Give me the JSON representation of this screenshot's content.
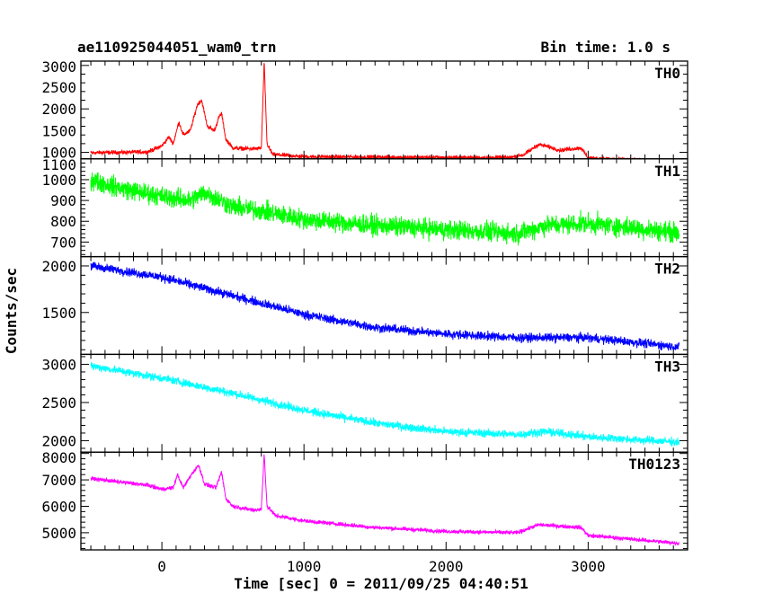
{
  "header": {
    "title": "ae110925044051_wam0_trn",
    "bin_time": "Bin time: 1.0 s"
  },
  "chart_data": {
    "type": "line",
    "xlabel": "Time [sec] 0 = 2011/09/25 04:40:51",
    "ylabel": "Counts/sec",
    "xlim": [
      -570,
      3700
    ],
    "x_ticks": [
      0,
      1000,
      2000,
      3000
    ],
    "x_data_range": [
      -500,
      3640
    ],
    "series": [
      {
        "name": "TH0",
        "color": "#ff0000",
        "ylim": [
          850,
          3100
        ],
        "y_ticks": [
          1000,
          1500,
          2000,
          2500,
          3000
        ],
        "noise": 40,
        "profile": [
          [
            -500,
            990
          ],
          [
            -100,
            1010
          ],
          [
            0,
            1150
          ],
          [
            50,
            1350
          ],
          [
            80,
            1200
          ],
          [
            120,
            1700
          ],
          [
            150,
            1400
          ],
          [
            200,
            1500
          ],
          [
            250,
            2100
          ],
          [
            280,
            2200
          ],
          [
            320,
            1600
          ],
          [
            370,
            1500
          ],
          [
            400,
            1800
          ],
          [
            420,
            1900
          ],
          [
            450,
            1300
          ],
          [
            500,
            1100
          ],
          [
            650,
            1080
          ],
          [
            700,
            1100
          ],
          [
            720,
            3080
          ],
          [
            740,
            1200
          ],
          [
            780,
            950
          ],
          [
            1000,
            900
          ],
          [
            2000,
            880
          ],
          [
            2450,
            880
          ],
          [
            2550,
            950
          ],
          [
            2650,
            1180
          ],
          [
            2700,
            1150
          ],
          [
            2800,
            1050
          ],
          [
            2950,
            1100
          ],
          [
            3000,
            870
          ],
          [
            3640,
            780
          ]
        ],
        "spikes": []
      },
      {
        "name": "TH1",
        "color": "#00ff00",
        "ylim": [
          630,
          1100
        ],
        "y_ticks": [
          700,
          800,
          900,
          1000,
          1100
        ],
        "noise": 40,
        "profile": [
          [
            -500,
            1000
          ],
          [
            -300,
            960
          ],
          [
            0,
            920
          ],
          [
            200,
            900
          ],
          [
            300,
            940
          ],
          [
            500,
            870
          ],
          [
            700,
            850
          ],
          [
            1000,
            810
          ],
          [
            1500,
            780
          ],
          [
            2000,
            760
          ],
          [
            2500,
            740
          ],
          [
            2700,
            780
          ],
          [
            3000,
            790
          ],
          [
            3640,
            745
          ]
        ],
        "spikes": []
      },
      {
        "name": "TH2",
        "color": "#0000ff",
        "ylim": [
          1050,
          2100
        ],
        "y_ticks": [
          1500,
          2000
        ],
        "noise": 40,
        "profile": [
          [
            -500,
            2000
          ],
          [
            0,
            1880
          ],
          [
            500,
            1680
          ],
          [
            1000,
            1480
          ],
          [
            1500,
            1340
          ],
          [
            2000,
            1270
          ],
          [
            2500,
            1230
          ],
          [
            3000,
            1230
          ],
          [
            3640,
            1130
          ]
        ],
        "spikes": []
      },
      {
        "name": "TH3",
        "color": "#00ffff",
        "ylim": [
          1850,
          3130
        ],
        "y_ticks": [
          2000,
          2500,
          3000
        ],
        "noise": 45,
        "profile": [
          [
            -500,
            2980
          ],
          [
            0,
            2820
          ],
          [
            500,
            2620
          ],
          [
            1000,
            2400
          ],
          [
            1500,
            2230
          ],
          [
            2000,
            2120
          ],
          [
            2500,
            2080
          ],
          [
            2700,
            2120
          ],
          [
            3000,
            2050
          ],
          [
            3640,
            1980
          ]
        ],
        "spikes": []
      },
      {
        "name": "TH0123",
        "color": "#ff00ff",
        "ylim": [
          4350,
          8050
        ],
        "y_ticks": [
          5000,
          6000,
          7000,
          8000
        ],
        "noise": 65,
        "profile": [
          [
            -500,
            7050
          ],
          [
            -100,
            6800
          ],
          [
            0,
            6650
          ],
          [
            80,
            6700
          ],
          [
            110,
            7200
          ],
          [
            150,
            6700
          ],
          [
            220,
            7300
          ],
          [
            260,
            7550
          ],
          [
            300,
            6850
          ],
          [
            380,
            6700
          ],
          [
            420,
            7300
          ],
          [
            450,
            6300
          ],
          [
            500,
            6000
          ],
          [
            650,
            5850
          ],
          [
            700,
            5900
          ],
          [
            720,
            8000
          ],
          [
            740,
            6000
          ],
          [
            800,
            5650
          ],
          [
            1000,
            5450
          ],
          [
            1500,
            5200
          ],
          [
            2000,
            5050
          ],
          [
            2500,
            5000
          ],
          [
            2650,
            5300
          ],
          [
            2800,
            5250
          ],
          [
            2950,
            5200
          ],
          [
            3000,
            4900
          ],
          [
            3640,
            4600
          ]
        ],
        "spikes": []
      }
    ]
  }
}
